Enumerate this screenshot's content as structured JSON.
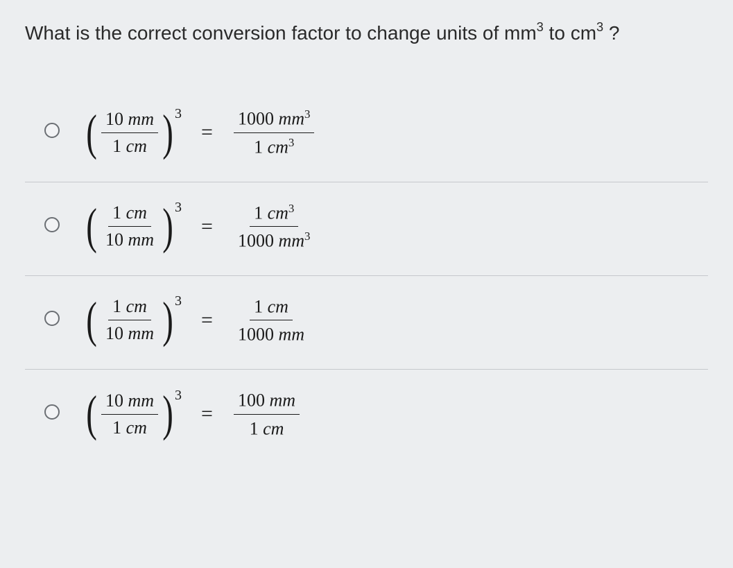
{
  "colors": {
    "page_bg": "#eceef0",
    "outer_bg": "#d8dbde",
    "text": "#2a2a2a",
    "divider": "#c5c8cc",
    "radio_border": "#6b6f74"
  },
  "typography": {
    "question_fontsize": 28,
    "equation_fontsize": 26,
    "question_family": "sans-serif",
    "equation_family": "serif-italic"
  },
  "question": {
    "prefix": "What is the correct conversion factor to change units of mm",
    "sup1": "3",
    "mid": " to cm",
    "sup2": "3",
    "suffix": " ?"
  },
  "options": [
    {
      "id": "a",
      "left": {
        "num_val": "10",
        "num_unit": "mm",
        "den_val": "1",
        "den_unit": "cm",
        "exp": "3"
      },
      "right": {
        "num_val": "1000",
        "num_unit": "mm",
        "num_sup": "3",
        "den_val": "1",
        "den_unit": "cm",
        "den_sup": "3"
      }
    },
    {
      "id": "b",
      "left": {
        "num_val": "1",
        "num_unit": "cm",
        "den_val": "10",
        "den_unit": "mm",
        "exp": "3"
      },
      "right": {
        "num_val": "1",
        "num_unit": "cm",
        "num_sup": "3",
        "den_val": "1000",
        "den_unit": "mm",
        "den_sup": "3"
      }
    },
    {
      "id": "c",
      "left": {
        "num_val": "1",
        "num_unit": "cm",
        "den_val": "10",
        "den_unit": "mm",
        "exp": "3"
      },
      "right": {
        "num_val": "1",
        "num_unit": "cm",
        "num_sup": "",
        "den_val": "1000",
        "den_unit": "mm",
        "den_sup": ""
      }
    },
    {
      "id": "d",
      "left": {
        "num_val": "10",
        "num_unit": "mm",
        "den_val": "1",
        "den_unit": "cm",
        "exp": "3"
      },
      "right": {
        "num_val": "100",
        "num_unit": "mm",
        "num_sup": "",
        "den_val": "1",
        "den_unit": "cm",
        "den_sup": ""
      }
    }
  ]
}
